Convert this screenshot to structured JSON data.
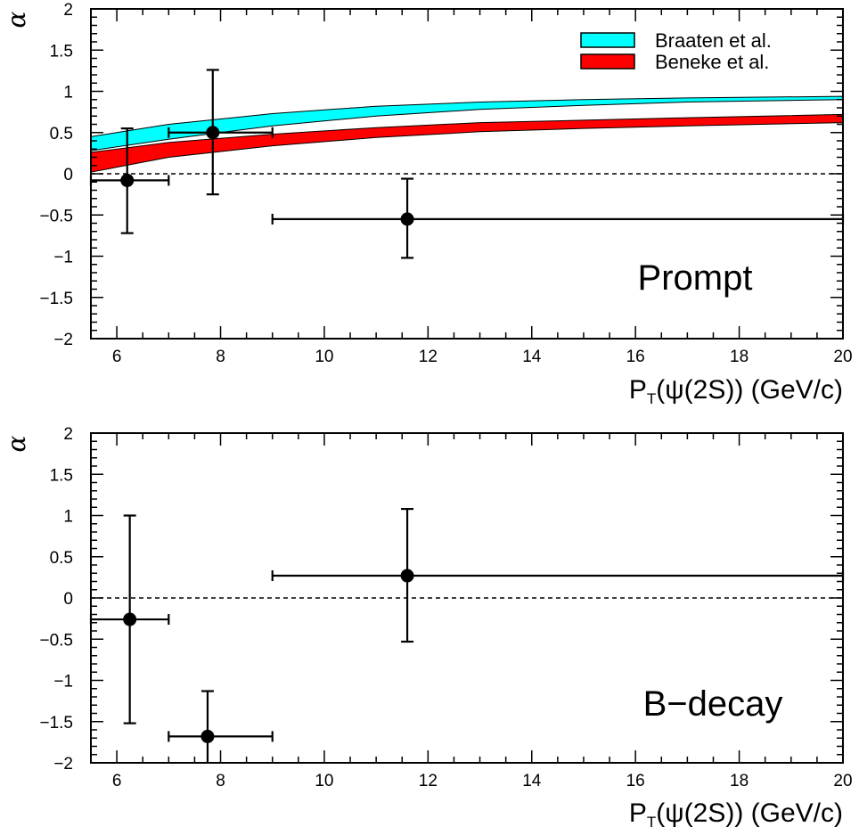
{
  "chart_data": [
    {
      "type": "scatter",
      "panel": "top",
      "title": "",
      "xlabel": "P_T(ψ(2S)) (GeV/c)",
      "ylabel": "α",
      "xlim": [
        5.5,
        20
      ],
      "ylim": [
        -2,
        2
      ],
      "x_ticks": [
        6,
        8,
        10,
        12,
        14,
        16,
        18,
        20
      ],
      "y_ticks": [
        -2,
        -1.5,
        -1,
        -0.5,
        0,
        0.5,
        1,
        1.5,
        2
      ],
      "annotation": "Prompt",
      "reference_line": 0,
      "legend_position": "top-right",
      "bands": [
        {
          "name": "Braaten et al.",
          "color": "#00ffff",
          "x": [
            5.5,
            7,
            9,
            11,
            13,
            15,
            17,
            20
          ],
          "lower": [
            0.28,
            0.42,
            0.58,
            0.7,
            0.78,
            0.83,
            0.87,
            0.9
          ],
          "upper": [
            0.45,
            0.6,
            0.73,
            0.82,
            0.87,
            0.9,
            0.92,
            0.94
          ]
        },
        {
          "name": "Beneke et al.",
          "color": "#ff0000",
          "x": [
            5.5,
            7,
            9,
            11,
            13,
            15,
            17,
            20
          ],
          "lower": [
            0.02,
            0.2,
            0.34,
            0.44,
            0.51,
            0.55,
            0.58,
            0.62
          ],
          "upper": [
            0.26,
            0.38,
            0.48,
            0.56,
            0.62,
            0.65,
            0.68,
            0.72
          ]
        }
      ],
      "points": [
        {
          "x": 6.2,
          "y": -0.08,
          "xlo": 5.5,
          "xhi": 7.0,
          "ylo": -0.72,
          "yhi": 0.55
        },
        {
          "x": 7.85,
          "y": 0.5,
          "xlo": 7.0,
          "xhi": 9.0,
          "ylo": -0.25,
          "yhi": 1.26
        },
        {
          "x": 11.6,
          "y": -0.55,
          "xlo": 9.0,
          "xhi": 20.0,
          "ylo": -1.02,
          "yhi": -0.06
        }
      ]
    },
    {
      "type": "scatter",
      "panel": "bottom",
      "title": "",
      "xlabel": "P_T(ψ(2S)) (GeV/c)",
      "ylabel": "α",
      "xlim": [
        5.5,
        20
      ],
      "ylim": [
        -2,
        2
      ],
      "x_ticks": [
        6,
        8,
        10,
        12,
        14,
        16,
        18,
        20
      ],
      "y_ticks": [
        -2,
        -1.5,
        -1,
        -0.5,
        0,
        0.5,
        1,
        1.5,
        2
      ],
      "annotation": "B−decay",
      "reference_line": 0,
      "points": [
        {
          "x": 6.25,
          "y": -0.26,
          "xlo": 5.5,
          "xhi": 7.0,
          "ylo": -1.52,
          "yhi": 1.0
        },
        {
          "x": 7.75,
          "y": -1.68,
          "xlo": 7.0,
          "xhi": 9.0,
          "ylo": -2.0,
          "yhi": -1.13
        },
        {
          "x": 11.6,
          "y": 0.27,
          "xlo": 9.0,
          "xhi": 20.0,
          "ylo": -0.53,
          "yhi": 1.08
        }
      ]
    }
  ]
}
